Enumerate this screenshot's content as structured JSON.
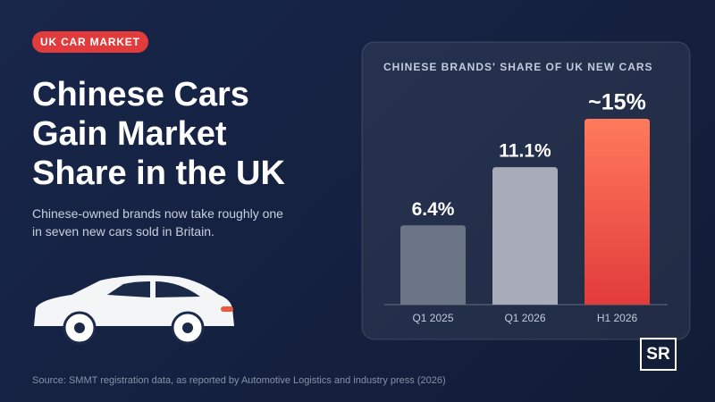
{
  "badge": "UK CAR MARKET",
  "headline": "Chinese Cars Gain Market Share in the UK",
  "subheadline": "Chinese-owned brands now take roughly one in seven new cars sold in Britain.",
  "source": "Source: SMMT registration data, as reported by Automotive Logistics and industry press (2026)",
  "logo": "SR",
  "chart_data": {
    "type": "bar",
    "title": "CHINESE BRANDS' SHARE OF UK NEW CARS",
    "categories": [
      "Q1 2025",
      "Q1 2026",
      "H1 2026"
    ],
    "values": [
      6.4,
      11.1,
      15
    ],
    "value_labels": [
      "6.4%",
      "11.1%",
      "~15%"
    ],
    "colors": [
      "#6b7586",
      "#a8acb8",
      "#ee5843"
    ]
  }
}
